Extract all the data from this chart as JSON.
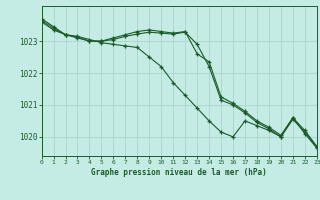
{
  "xlabel": "Graphe pression niveau de la mer (hPa)",
  "bg_color": "#c5ebe5",
  "grid_color": "#a8d5ce",
  "line_color": "#1a5c28",
  "ylim": [
    1019.4,
    1024.1
  ],
  "yticks": [
    1020,
    1021,
    1022,
    1023
  ],
  "xlim": [
    0,
    23
  ],
  "xticks": [
    0,
    1,
    2,
    3,
    4,
    5,
    6,
    7,
    8,
    9,
    10,
    11,
    12,
    13,
    14,
    15,
    16,
    17,
    18,
    19,
    20,
    21,
    22,
    23
  ],
  "series": [
    [
      1023.7,
      1023.45,
      1023.2,
      1023.15,
      1023.05,
      1022.95,
      1022.9,
      1022.85,
      1022.8,
      1022.5,
      1022.2,
      1021.7,
      1021.3,
      1020.9,
      1020.5,
      1020.15,
      1020.0,
      1020.5,
      1020.35,
      1020.2,
      1020.0,
      1020.6,
      1020.1,
      1019.65
    ],
    [
      1023.6,
      1023.35,
      1023.2,
      1023.1,
      1023.0,
      1023.0,
      1023.1,
      1023.2,
      1023.3,
      1023.35,
      1023.3,
      1023.25,
      1023.3,
      1022.6,
      1022.35,
      1021.25,
      1021.05,
      1020.8,
      1020.5,
      1020.3,
      1020.05,
      1020.6,
      1020.2,
      1019.7
    ],
    [
      1023.65,
      1023.4,
      1023.2,
      1023.12,
      1023.0,
      1023.0,
      1023.05,
      1023.15,
      1023.22,
      1023.28,
      1023.25,
      1023.22,
      1023.28,
      1022.9,
      1022.2,
      1021.15,
      1021.0,
      1020.75,
      1020.45,
      1020.25,
      1020.0,
      1020.55,
      1020.15,
      1019.68
    ]
  ]
}
